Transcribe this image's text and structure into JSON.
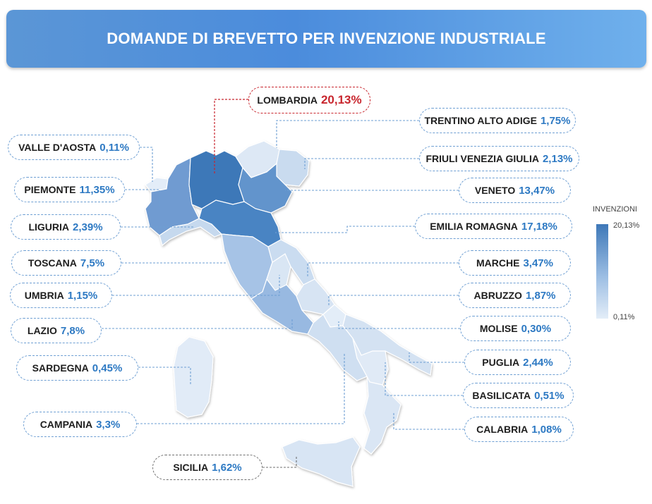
{
  "title": "DOMANDE DI BREVETTO PER INVENZIONE INDUSTRIALE",
  "legend": {
    "title": "INVENZIONI",
    "max": "20,13%",
    "min": "0,11%",
    "color_max": "#3e78b8",
    "color_min": "#e3edf8"
  },
  "regions": {
    "lombardia": {
      "name": "LOMBARDIA",
      "value": "20,13%"
    },
    "trentino": {
      "name": "TRENTINO ALTO ADIGE",
      "value": "1,75%"
    },
    "valle_aosta": {
      "name": "VALLE D'AOSTA",
      "value": "0,11%"
    },
    "friuli": {
      "name": "FRIULI VENEZIA GIULIA",
      "value": "2,13%"
    },
    "piemonte": {
      "name": "PIEMONTE",
      "value": "11,35%"
    },
    "veneto": {
      "name": "VENETO",
      "value": "13,47%"
    },
    "liguria": {
      "name": "LIGURIA",
      "value": "2,39%"
    },
    "emilia": {
      "name": "EMILIA ROMAGNA",
      "value": "17,18%"
    },
    "toscana": {
      "name": "TOSCANA",
      "value": "7,5%"
    },
    "marche": {
      "name": "MARCHE",
      "value": "3,47%"
    },
    "umbria": {
      "name": "UMBRIA",
      "value": "1,15%"
    },
    "abruzzo": {
      "name": "ABRUZZO",
      "value": "1,87%"
    },
    "lazio": {
      "name": "LAZIO",
      "value": "7,8%"
    },
    "molise": {
      "name": "MOLISE",
      "value": "0,30%"
    },
    "sardegna": {
      "name": "SARDEGNA",
      "value": "0,45%"
    },
    "puglia": {
      "name": "PUGLIA",
      "value": "2,44%"
    },
    "basilicata": {
      "name": "BASILICATA",
      "value": "0,51%"
    },
    "campania": {
      "name": "CAMPANIA",
      "value": "3,3%"
    },
    "calabria": {
      "name": "CALABRIA",
      "value": "1,08%"
    },
    "sicilia": {
      "name": "SICILIA",
      "value": "1,62%"
    }
  },
  "colors": {
    "leader_line": "#6e9fd3",
    "highlight": "#c8262e",
    "value_text": "#2d79c3"
  }
}
